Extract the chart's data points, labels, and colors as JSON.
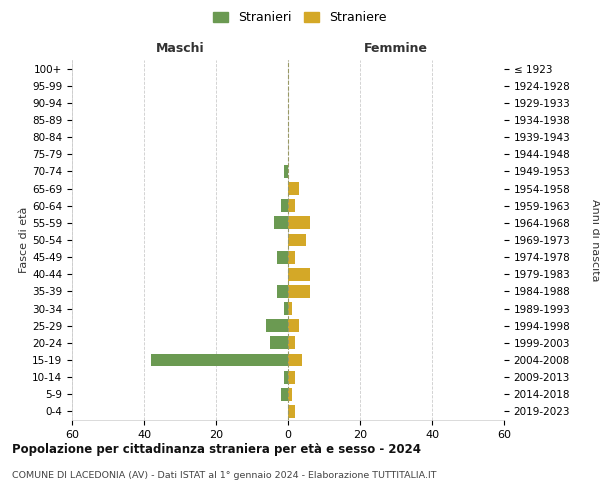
{
  "age_groups": [
    "0-4",
    "5-9",
    "10-14",
    "15-19",
    "20-24",
    "25-29",
    "30-34",
    "35-39",
    "40-44",
    "45-49",
    "50-54",
    "55-59",
    "60-64",
    "65-69",
    "70-74",
    "75-79",
    "80-84",
    "85-89",
    "90-94",
    "95-99",
    "100+"
  ],
  "birth_years": [
    "2019-2023",
    "2014-2018",
    "2009-2013",
    "2004-2008",
    "1999-2003",
    "1994-1998",
    "1989-1993",
    "1984-1988",
    "1979-1983",
    "1974-1978",
    "1969-1973",
    "1964-1968",
    "1959-1963",
    "1954-1958",
    "1949-1953",
    "1944-1948",
    "1939-1943",
    "1934-1938",
    "1929-1933",
    "1924-1928",
    "≤ 1923"
  ],
  "maschi": [
    0,
    -2,
    -1,
    -38,
    -5,
    -6,
    -1,
    -3,
    0,
    -3,
    0,
    -4,
    -2,
    0,
    -1,
    0,
    0,
    0,
    0,
    0,
    0
  ],
  "femmine": [
    2,
    1,
    2,
    4,
    2,
    3,
    1,
    6,
    6,
    2,
    5,
    6,
    2,
    3,
    0,
    0,
    0,
    0,
    0,
    0,
    0
  ],
  "color_maschi": "#6b9a52",
  "color_femmine": "#d4a827",
  "title": "Popolazione per cittadinanza straniera per età e sesso - 2024",
  "subtitle": "COMUNE DI LACEDONIA (AV) - Dati ISTAT al 1° gennaio 2024 - Elaborazione TUTTITALIA.IT",
  "ylabel_left": "Fasce di età",
  "ylabel_right": "Anni di nascita",
  "label_maschi": "Maschi",
  "label_femmine": "Femmine",
  "legend_maschi": "Stranieri",
  "legend_femmine": "Straniere",
  "xlim": [
    -60,
    60
  ],
  "background_color": "#ffffff",
  "grid_color": "#cccccc",
  "bar_height": 0.75
}
